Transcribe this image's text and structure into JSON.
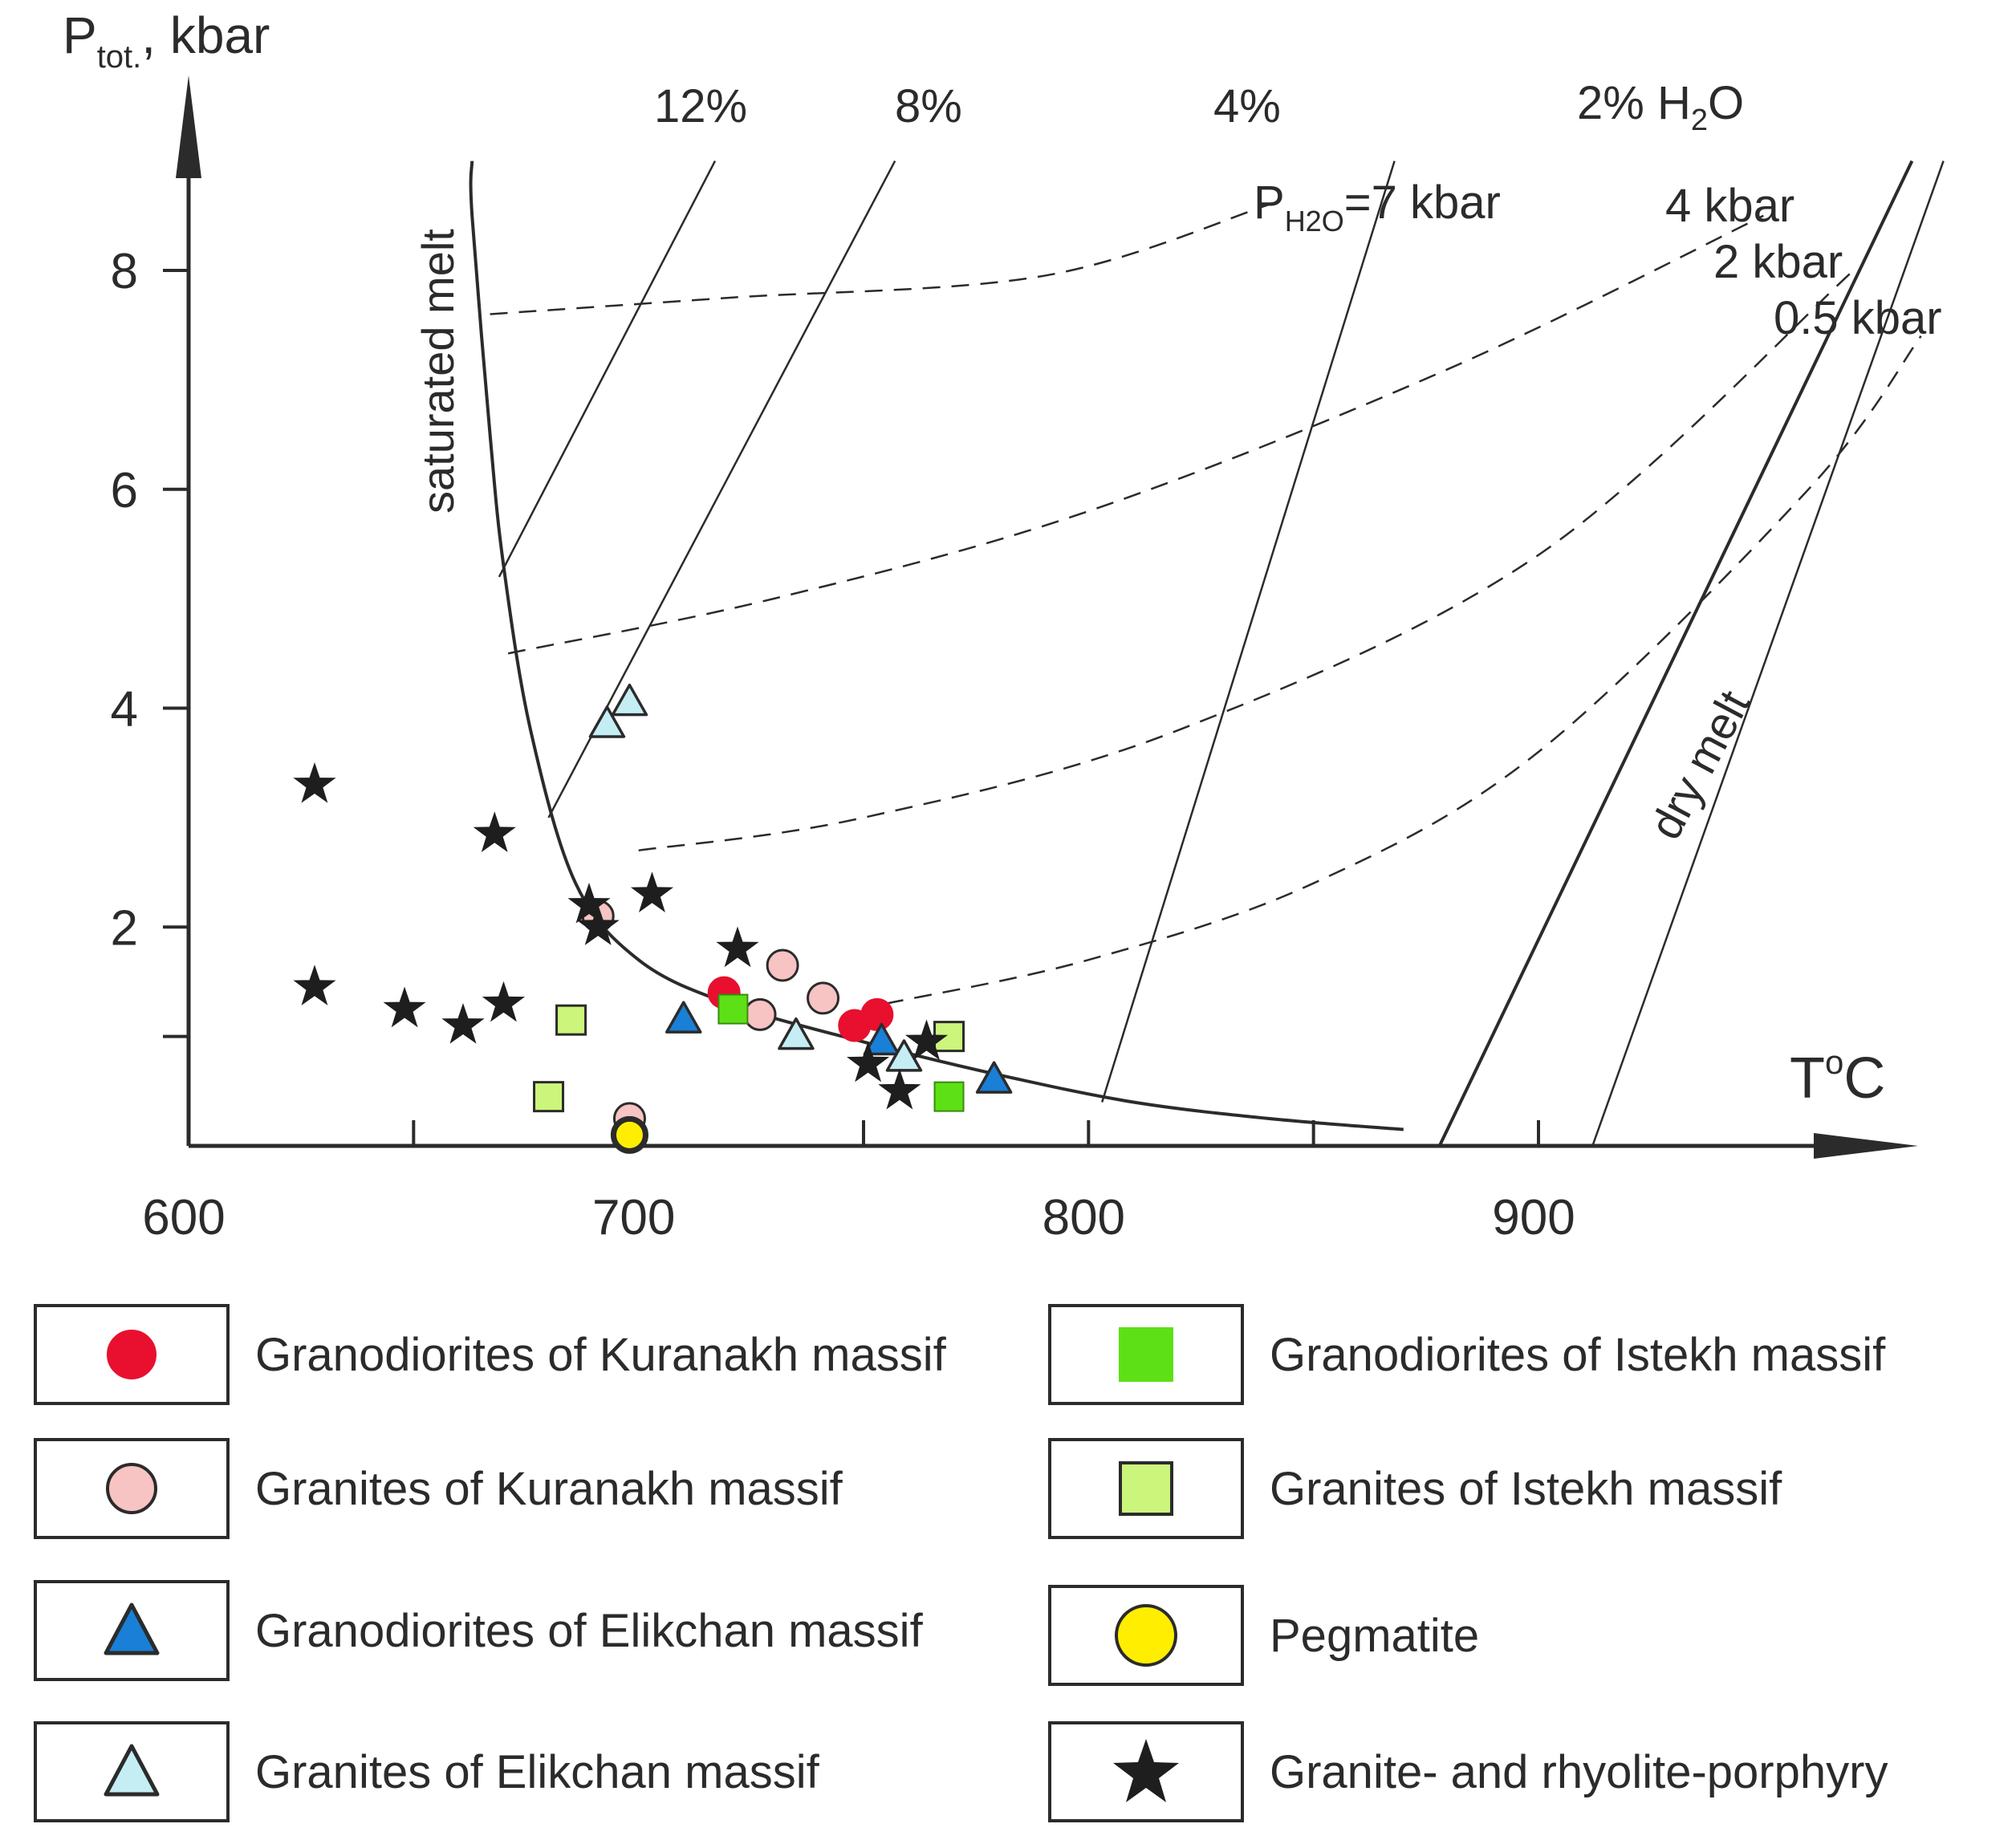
{
  "chart_data": {
    "type": "scatter",
    "title": "",
    "xlabel": "T°C",
    "ylabel": "Ptot., kbar",
    "ylabel_main": "P",
    "ylabel_sub": "tot.",
    "ylabel_rest": ", kbar",
    "xlabel_main": "T",
    "xlabel_sup": "o",
    "xlabel_rest": "C",
    "xlim": [
      600,
      980
    ],
    "ylim": [
      0,
      9.5
    ],
    "x_ticks": [
      600,
      650,
      700,
      750,
      800,
      850,
      900
    ],
    "x_tick_labels": [
      "600",
      "700",
      "800",
      "900"
    ],
    "x_tick_label_values": [
      600,
      700,
      800,
      900
    ],
    "y_ticks": [
      1,
      2,
      4,
      6,
      8
    ],
    "y_tick_labels": [
      "2",
      "4",
      "6",
      "8"
    ],
    "y_tick_label_values": [
      2,
      4,
      6,
      8
    ],
    "curves": {
      "saturated_melt": {
        "label": "saturated melt",
        "points": [
          [
            663,
            9.0
          ],
          [
            663,
            8.5
          ],
          [
            667,
            6.5
          ],
          [
            670,
            5.3
          ],
          [
            676,
            3.8
          ],
          [
            686,
            2.4
          ],
          [
            700,
            1.7
          ],
          [
            720,
            1.3
          ],
          [
            750,
            0.95
          ],
          [
            780,
            0.65
          ],
          [
            810,
            0.4
          ],
          [
            840,
            0.25
          ],
          [
            870,
            0.15
          ]
        ]
      },
      "dry_melt": {
        "label": "dry melt",
        "points": [
          [
            878,
            0
          ],
          [
            983,
            9.0
          ]
        ]
      },
      "h2o_12": {
        "label": "12%",
        "points": [
          [
            669,
            5.2
          ],
          [
            717,
            9.0
          ]
        ]
      },
      "h2o_8": {
        "label": "8%",
        "points": [
          [
            680,
            3.0
          ],
          [
            757,
            9.0
          ]
        ]
      },
      "h2o_4": {
        "label": "4%",
        "points": [
          [
            803,
            0.4
          ],
          [
            868,
            9.0
          ]
        ]
      },
      "h2o_2": {
        "label": "2% H2O",
        "points": [
          [
            912,
            0
          ],
          [
            990,
            9.0
          ]
        ]
      },
      "p7": {
        "label": "PH2O=7 kbar",
        "points": [
          [
            667,
            7.6
          ],
          [
            720,
            7.75
          ],
          [
            790,
            7.95
          ],
          [
            840,
            8.6
          ]
        ]
      },
      "p4": {
        "label": "4 kbar",
        "points": [
          [
            671,
            4.5
          ],
          [
            730,
            5.0
          ],
          [
            800,
            5.8
          ],
          [
            880,
            7.1
          ],
          [
            950,
            8.5
          ]
        ]
      },
      "p2": {
        "label": "2 kbar",
        "points": [
          [
            700,
            2.7
          ],
          [
            750,
            3.0
          ],
          [
            820,
            3.8
          ],
          [
            900,
            5.4
          ],
          [
            970,
            8.0
          ]
        ]
      },
      "p05": {
        "label": "0.5 kbar",
        "points": [
          [
            755,
            1.3
          ],
          [
            800,
            1.7
          ],
          [
            850,
            2.4
          ],
          [
            900,
            3.6
          ],
          [
            960,
            6.0
          ],
          [
            985,
            7.4
          ]
        ]
      }
    },
    "curve_labels": {
      "h2o_12": "12%",
      "h2o_8": "8%",
      "h2o_4": "4%",
      "h2o_2_main": "2% H",
      "h2o_2_sub": "2",
      "h2o_2_rest": "O",
      "p7_main": "P",
      "p7_sub": "H2O",
      "p7_rest": "=7 kbar",
      "p4": "4 kbar",
      "p2": "2 kbar",
      "p05": "0.5 kbar",
      "saturated": "saturated melt",
      "dry": "dry melt"
    },
    "series": [
      {
        "name": "Granodiorites of Kuranakh massif",
        "marker": "circle",
        "color": "#e8102e",
        "points": [
          [
            719,
            1.4
          ],
          [
            748,
            1.1
          ],
          [
            753,
            1.2
          ]
        ]
      },
      {
        "name": "Granites of Kuranakh massif",
        "marker": "circle",
        "color": "#f7c3c3",
        "points": [
          [
            691,
            2.1
          ],
          [
            727,
            1.2
          ],
          [
            732,
            1.65
          ],
          [
            741,
            1.35
          ],
          [
            698,
            0.25
          ]
        ]
      },
      {
        "name": "Granodiorites of Elikchan massif",
        "marker": "triangle",
        "color": "#1a7fd6",
        "points": [
          [
            710,
            1.15
          ],
          [
            754,
            0.95
          ],
          [
            779,
            0.6
          ]
        ]
      },
      {
        "name": "Granites of Elikchan massif",
        "marker": "triangle",
        "color": "#c5eef4",
        "points": [
          [
            693,
            3.85
          ],
          [
            698,
            4.05
          ],
          [
            735,
            1.0
          ],
          [
            759,
            0.8
          ]
        ]
      },
      {
        "name": "Granodiorites of Istekh massif",
        "marker": "square",
        "color": "#5de016",
        "points": [
          [
            721,
            1.25
          ],
          [
            769,
            0.45
          ]
        ]
      },
      {
        "name": "Granites of Istekh massif",
        "marker": "square",
        "color": "#ccf57c",
        "points": [
          [
            685,
            1.15
          ],
          [
            680,
            0.45
          ],
          [
            769,
            1.0
          ]
        ]
      },
      {
        "name": "Pegmatite",
        "marker": "circle",
        "color": "#ffee00",
        "points": [
          [
            698,
            0.1
          ]
        ]
      },
      {
        "name": "Granite- and rhyolite-porphyry",
        "marker": "star",
        "color": "#1e1e1e",
        "points": [
          [
            628,
            3.3
          ],
          [
            628,
            1.45
          ],
          [
            648,
            1.25
          ],
          [
            661,
            1.1
          ],
          [
            670,
            1.3
          ],
          [
            668,
            2.85
          ],
          [
            689,
            2.2
          ],
          [
            691,
            2.0
          ],
          [
            703,
            2.3
          ],
          [
            722,
            1.8
          ],
          [
            751,
            0.75
          ],
          [
            758,
            0.5
          ],
          [
            764,
            0.95
          ]
        ]
      }
    ]
  },
  "legend": [
    {
      "label": "Granodiorites of Kuranakh massif",
      "marker": "circle",
      "color": "#e8102e"
    },
    {
      "label": "Granites of Kuranakh massif",
      "marker": "circle",
      "color": "#f7c3c3"
    },
    {
      "label": "Granodiorites of Elikchan massif",
      "marker": "triangle",
      "color": "#1a7fd6"
    },
    {
      "label": "Granites of Elikchan massif",
      "marker": "triangle",
      "color": "#c5eef4"
    },
    {
      "label": "Granodiorites of Istekh massif",
      "marker": "square",
      "color": "#5de016"
    },
    {
      "label": "Granites of Istekh massif",
      "marker": "square",
      "color": "#ccf57c"
    },
    {
      "label": "Pegmatite",
      "marker": "circle",
      "color": "#ffee00"
    },
    {
      "label": "Granite- and rhyolite-porphyry",
      "marker": "star",
      "color": "#1e1e1e"
    }
  ]
}
